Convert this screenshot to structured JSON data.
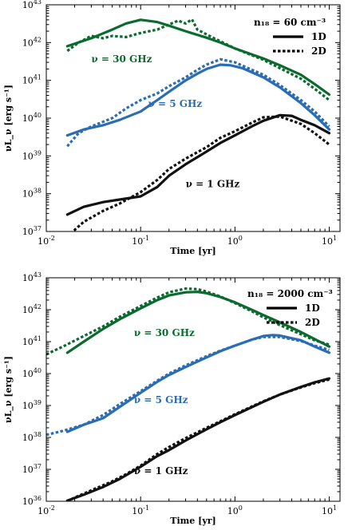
{
  "chart_data": [
    {
      "type": "line",
      "xscale": "log",
      "yscale": "log",
      "xlim": [
        0.01,
        13
      ],
      "ylim": [
        1e+37,
        1e+43
      ],
      "xticks": [
        {
          "v": 0.01,
          "base": "10",
          "exp": "-2"
        },
        {
          "v": 0.1,
          "base": "10",
          "exp": "-1"
        },
        {
          "v": 1,
          "base": "10",
          "exp": "0"
        },
        {
          "v": 10,
          "base": "10",
          "exp": "1"
        }
      ],
      "yticks": [
        {
          "v": 1e+37,
          "base": "10",
          "exp": "37"
        },
        {
          "v": 1e+38,
          "base": "10",
          "exp": "38"
        },
        {
          "v": 1e+39,
          "base": "10",
          "exp": "39"
        },
        {
          "v": 1e+40,
          "base": "10",
          "exp": "40"
        },
        {
          "v": 1e+41,
          "base": "10",
          "exp": "41"
        },
        {
          "v": 1e+42,
          "base": "10",
          "exp": "42"
        },
        {
          "v": 1e+43,
          "base": "10",
          "exp": "43"
        }
      ],
      "xlabel": "Time [yr]",
      "ylabel": "νL_ν [erg s⁻¹]",
      "legend": {
        "position": "top-right",
        "title": "n₁₈ = 60 cm⁻³",
        "entries": [
          {
            "label": "1D",
            "style": "solid"
          },
          {
            "label": "2D",
            "style": "dotted"
          }
        ]
      },
      "annotations": [
        {
          "text": "ν = 30 GHz",
          "color": "#0b6b2f",
          "x": 0.03,
          "y": 3e+41
        },
        {
          "text": "ν = 5 GHz",
          "color": "#2a6db5",
          "x": 0.12,
          "y": 2e+40
        },
        {
          "text": "ν = 1 GHz",
          "color": "#111111",
          "x": 0.3,
          "y": 1.5e+38
        }
      ],
      "series": [
        {
          "freq": "30 GHz",
          "dim": "1D",
          "color": "#0b6b2f",
          "style": "solid",
          "x": [
            0.0167,
            0.03,
            0.05,
            0.07,
            0.1,
            0.15,
            0.2,
            0.3,
            0.5,
            0.7,
            1,
            2,
            3,
            5,
            7,
            10
          ],
          "y": [
            8e+41,
            1.3e+42,
            2.2e+42,
            3.2e+42,
            4e+42,
            3.5e+42,
            2.8e+42,
            2e+42,
            1.35e+42,
            1e+42,
            7e+41,
            3.8e+41,
            2.5e+41,
            1.4e+41,
            8e+40,
            4.2e+40
          ]
        },
        {
          "freq": "30 GHz",
          "dim": "2D",
          "color": "#0b6b2f",
          "style": "dotted",
          "x": [
            0.0167,
            0.022,
            0.03,
            0.04,
            0.05,
            0.07,
            0.1,
            0.15,
            0.2,
            0.25,
            0.3,
            0.35,
            0.4,
            0.6,
            1,
            2,
            3,
            5,
            7,
            10
          ],
          "y": [
            6e+41,
            1e+42,
            1.5e+42,
            1.3e+42,
            1.5e+42,
            1.4e+42,
            1.8e+42,
            2.2e+42,
            3e+42,
            3.8e+42,
            3.2e+42,
            4.1e+42,
            2.2e+42,
            1.3e+42,
            7e+41,
            3.5e+41,
            2.1e+41,
            1.1e+41,
            6e+40,
            3e+40
          ]
        },
        {
          "freq": "5 GHz",
          "dim": "1D",
          "color": "#2a6db5",
          "style": "solid",
          "x": [
            0.0167,
            0.025,
            0.04,
            0.06,
            0.1,
            0.15,
            0.2,
            0.3,
            0.4,
            0.5,
            0.7,
            0.9,
            1.2,
            2,
            3,
            5,
            7,
            10
          ],
          "y": [
            3.5e+39,
            5e+39,
            6.5e+39,
            9e+39,
            1.5e+40,
            3e+40,
            5e+40,
            1e+41,
            1.5e+41,
            2e+41,
            2.6e+41,
            2.5e+41,
            2.1e+41,
            1.2e+41,
            6.5e+40,
            2.5e+40,
            1.2e+40,
            5e+39
          ]
        },
        {
          "freq": "5 GHz",
          "dim": "2D",
          "color": "#2a6db5",
          "style": "dotted",
          "x": [
            0.0167,
            0.022,
            0.03,
            0.05,
            0.07,
            0.1,
            0.15,
            0.2,
            0.3,
            0.4,
            0.5,
            0.7,
            1,
            2,
            3,
            5,
            7,
            10
          ],
          "y": [
            1.8e+39,
            4e+39,
            6e+39,
            1e+40,
            1.8e+40,
            3e+40,
            4.5e+40,
            7e+40,
            1.2e+41,
            1.9e+41,
            2.6e+41,
            3.6e+41,
            3e+41,
            1.4e+41,
            7.5e+40,
            3e+40,
            1.5e+40,
            6e+39
          ]
        },
        {
          "freq": "1 GHz",
          "dim": "1D",
          "color": "#111111",
          "style": "solid",
          "x": [
            0.0167,
            0.025,
            0.04,
            0.06,
            0.1,
            0.15,
            0.2,
            0.3,
            0.5,
            0.7,
            1,
            1.5,
            2,
            3,
            4,
            5,
            7,
            10
          ],
          "y": [
            2.8e+37,
            4.5e+37,
            6e+37,
            7e+37,
            8.5e+37,
            1.5e+38,
            3e+38,
            6e+38,
            1.3e+39,
            2.2e+39,
            3.5e+39,
            6e+39,
            8.5e+39,
            1.2e+40,
            1.15e+40,
            9e+39,
            6.5e+39,
            4e+39
          ]
        },
        {
          "freq": "1 GHz",
          "dim": "2D",
          "color": "#111111",
          "style": "dotted",
          "x": [
            0.0167,
            0.02,
            0.025,
            0.04,
            0.06,
            0.1,
            0.15,
            0.2,
            0.3,
            0.5,
            0.7,
            1,
            1.5,
            2,
            3,
            5,
            7,
            10
          ],
          "y": [
            7e+36,
            1.1e+37,
            1.8e+37,
            3.5e+37,
            5.5e+37,
            1.1e+38,
            2.3e+38,
            4.5e+38,
            8.5e+38,
            1.7e+39,
            3e+39,
            4.5e+39,
            7.5e+39,
            1.05e+40,
            1.1e+40,
            7e+39,
            4e+39,
            2e+39
          ]
        }
      ]
    },
    {
      "type": "line",
      "xscale": "log",
      "yscale": "log",
      "xlim": [
        0.01,
        13
      ],
      "ylim": [
        1e+36,
        1e+43
      ],
      "xticks": [
        {
          "v": 0.01,
          "base": "10",
          "exp": "-2"
        },
        {
          "v": 0.1,
          "base": "10",
          "exp": "-1"
        },
        {
          "v": 1,
          "base": "10",
          "exp": "0"
        },
        {
          "v": 10,
          "base": "10",
          "exp": "1"
        }
      ],
      "yticks": [
        {
          "v": 1e+36,
          "base": "10",
          "exp": "36"
        },
        {
          "v": 1e+37,
          "base": "10",
          "exp": "37"
        },
        {
          "v": 1e+38,
          "base": "10",
          "exp": "38"
        },
        {
          "v": 1e+39,
          "base": "10",
          "exp": "39"
        },
        {
          "v": 1e+40,
          "base": "10",
          "exp": "40"
        },
        {
          "v": 1e+41,
          "base": "10",
          "exp": "41"
        },
        {
          "v": 1e+42,
          "base": "10",
          "exp": "42"
        },
        {
          "v": 1e+43,
          "base": "10",
          "exp": "43"
        }
      ],
      "xlabel": "Time [yr]",
      "ylabel": "νL_ν [erg s⁻¹]",
      "legend": {
        "position": "top-right",
        "title": "n₁₈ = 2000 cm⁻³",
        "entries": [
          {
            "label": "1D",
            "style": "solid"
          },
          {
            "label": "2D",
            "style": "dotted"
          }
        ]
      },
      "annotations": [
        {
          "text": "ν = 30 GHz",
          "color": "#0b6b2f",
          "x": 0.085,
          "y": 1.5e+41
        },
        {
          "text": "ν = 5 GHz",
          "color": "#2a6db5",
          "x": 0.085,
          "y": 1.2e+39
        },
        {
          "text": "ν = 1 GHz",
          "color": "#111111",
          "x": 0.085,
          "y": 7e+36
        }
      ],
      "series": [
        {
          "freq": "30 GHz",
          "dim": "1D",
          "color": "#0b6b2f",
          "style": "solid",
          "x": [
            0.0167,
            0.025,
            0.04,
            0.06,
            0.1,
            0.15,
            0.2,
            0.3,
            0.4,
            0.5,
            0.7,
            1,
            1.5,
            2,
            3,
            5,
            7,
            10
          ],
          "y": [
            4.5e+40,
            1e+41,
            2.5e+41,
            5e+41,
            1.1e+42,
            2e+42,
            2.8e+42,
            3.5e+42,
            3.6e+42,
            3.3e+42,
            2.5e+42,
            1.7e+42,
            1e+42,
            6.8e+41,
            4e+41,
            2e+41,
            1.2e+41,
            7e+40
          ]
        },
        {
          "freq": "30 GHz",
          "dim": "2D",
          "color": "#0b6b2f",
          "style": "dotted",
          "x": [
            0.01,
            0.015,
            0.025,
            0.04,
            0.06,
            0.1,
            0.15,
            0.2,
            0.3,
            0.4,
            0.5,
            0.7,
            1,
            1.5,
            2,
            3,
            5,
            7,
            10
          ],
          "y": [
            4e+40,
            7e+40,
            1.5e+41,
            3e+41,
            6e+41,
            1.3e+42,
            2.4e+42,
            3.5e+42,
            4.6e+42,
            4.4e+42,
            3.7e+42,
            2.6e+42,
            1.6e+42,
            9e+41,
            5.8e+41,
            3.3e+41,
            1.7e+41,
            1.1e+41,
            8e+40
          ]
        },
        {
          "freq": "5 GHz",
          "dim": "1D",
          "color": "#2a6db5",
          "style": "solid",
          "x": [
            0.0167,
            0.025,
            0.04,
            0.06,
            0.1,
            0.15,
            0.2,
            0.3,
            0.5,
            0.7,
            1,
            1.5,
            2,
            2.5,
            3,
            5,
            7,
            10
          ],
          "y": [
            1.5e+38,
            2.5e+38,
            4e+38,
            9e+38,
            2.5e+39,
            5.5e+39,
            9e+39,
            1.6e+40,
            3.2e+40,
            5e+40,
            7.5e+40,
            1.15e+41,
            1.5e+41,
            1.6e+41,
            1.55e+41,
            1.1e+41,
            7e+40,
            4.5e+40
          ]
        },
        {
          "freq": "5 GHz",
          "dim": "2D",
          "color": "#2a6db5",
          "style": "dotted",
          "x": [
            0.01,
            0.015,
            0.025,
            0.04,
            0.06,
            0.1,
            0.15,
            0.2,
            0.3,
            0.5,
            0.7,
            1,
            1.5,
            2,
            3,
            5,
            7,
            10
          ],
          "y": [
            1.2e+38,
            1.6e+38,
            2.5e+38,
            5e+38,
            1.1e+39,
            2.8e+39,
            6e+39,
            1e+40,
            1.8e+40,
            3.5e+40,
            5.2e+40,
            7.5e+40,
            1.15e+41,
            1.4e+41,
            1.4e+41,
            1.05e+41,
            7.5e+40,
            5.5e+40
          ]
        },
        {
          "freq": "1 GHz",
          "dim": "1D",
          "color": "#111111",
          "style": "solid",
          "x": [
            0.0167,
            0.025,
            0.04,
            0.06,
            0.1,
            0.15,
            0.2,
            0.3,
            0.5,
            0.7,
            1,
            2,
            3,
            5,
            7,
            10
          ],
          "y": [
            1.05e+36,
            1.6e+36,
            2.8e+36,
            5e+36,
            1.2e+37,
            2.6e+37,
            4e+37,
            8e+37,
            1.8e+38,
            3e+38,
            5e+38,
            1.3e+39,
            2.2e+39,
            3.8e+39,
            5.3e+39,
            7e+39
          ]
        },
        {
          "freq": "1 GHz",
          "dim": "2D",
          "color": "#111111",
          "style": "dotted",
          "x": [
            0.0167,
            0.02,
            0.03,
            0.05,
            0.07,
            0.1,
            0.15,
            0.2,
            0.3,
            0.5,
            0.7,
            1,
            2,
            3,
            5,
            7,
            10
          ],
          "y": [
            1e+36,
            1.3e+36,
            2.2e+36,
            4.2e+36,
            7e+36,
            1.3e+37,
            3e+37,
            5e+37,
            9.5e+37,
            2e+38,
            3.2e+38,
            5.3e+38,
            1.35e+39,
            2.2e+39,
            3.7e+39,
            5e+39,
            6.5e+39
          ]
        }
      ]
    }
  ]
}
